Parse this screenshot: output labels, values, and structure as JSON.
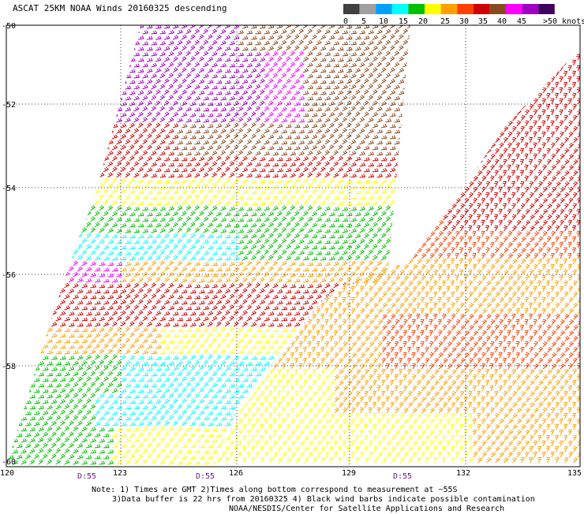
{
  "header": {
    "title": "ASCAT 25KM NOAA Winds 20160325 descending"
  },
  "legend": {
    "labels": [
      "0",
      "5",
      "10",
      "15",
      "20",
      "25",
      "30",
      "35",
      "40",
      "45",
      ">50 knots"
    ],
    "colors": [
      "#404040",
      "#a0a0a0",
      "#00a0ff",
      "#00ffff",
      "#00c000",
      "#ffff00",
      "#ffa000",
      "#ff4000",
      "#d00000",
      "#8a4a20",
      "#ff00ff",
      "#a000c0",
      "#400060"
    ]
  },
  "map": {
    "lat_labels": [
      "-50",
      "-52",
      "-54",
      "-56",
      "-58",
      "-60"
    ],
    "lon_labels": [
      "120",
      "123",
      "126",
      "129",
      "132",
      "135"
    ],
    "time_labels": [
      "D:55",
      "D:55",
      "D:55"
    ]
  },
  "notes": {
    "line1": "Note: 1) Times are GMT 2)Times along bottom correspond to measurement at ~55S",
    "line2": "3)Data buffer is 22 hrs from 20160325 4) Black wind barbs indicate possible contamination",
    "line3": "NOAA/NESDIS/Center for Satellite Applications and Research"
  }
}
